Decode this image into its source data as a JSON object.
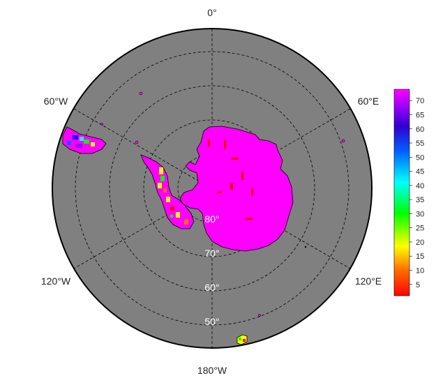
{
  "map": {
    "projection": "south polar stereographic",
    "longitude_labels": {
      "top": "0°",
      "upper_left": "60°W",
      "upper_right": "60°E",
      "lower_left": "120°W",
      "lower_right": "120°E",
      "bottom": "180°W"
    },
    "latitude_labels": [
      "80°",
      "70°",
      "60°",
      "50°"
    ],
    "colors": {
      "ocean": "#808080",
      "land_high": "#ff00ff",
      "outline": "#000000",
      "grid": "#000000"
    }
  },
  "colorbar": {
    "ticks": [
      "70",
      "65",
      "60",
      "55",
      "50",
      "45",
      "40",
      "35",
      "30",
      "25",
      "20",
      "15",
      "10",
      "5"
    ],
    "range": [
      1,
      74
    ],
    "colormap": "rainbow (red → yellow → green → cyan → blue → violet → magenta)"
  }
}
